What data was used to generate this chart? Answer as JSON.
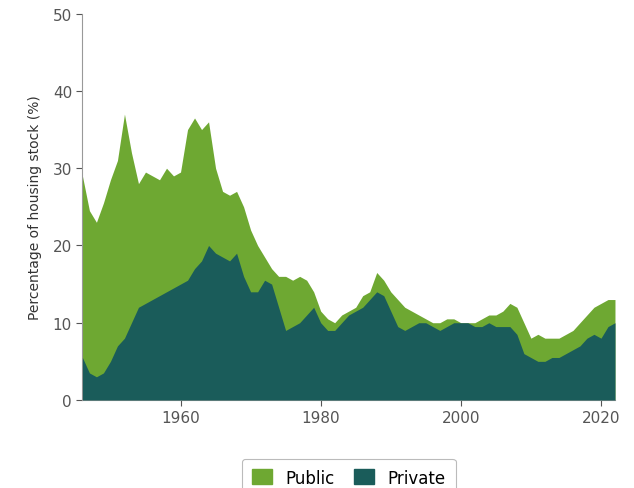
{
  "years": [
    1946,
    1947,
    1948,
    1949,
    1950,
    1951,
    1952,
    1953,
    1954,
    1955,
    1956,
    1957,
    1958,
    1959,
    1960,
    1961,
    1962,
    1963,
    1964,
    1965,
    1966,
    1967,
    1968,
    1969,
    1970,
    1971,
    1972,
    1973,
    1974,
    1975,
    1976,
    1977,
    1978,
    1979,
    1980,
    1981,
    1982,
    1983,
    1984,
    1985,
    1986,
    1987,
    1988,
    1989,
    1990,
    1991,
    1992,
    1993,
    1994,
    1995,
    1996,
    1997,
    1998,
    1999,
    2000,
    2001,
    2002,
    2003,
    2004,
    2005,
    2006,
    2007,
    2008,
    2009,
    2010,
    2011,
    2012,
    2013,
    2014,
    2015,
    2016,
    2017,
    2018,
    2019,
    2020,
    2021,
    2022
  ],
  "public": [
    29.0,
    24.5,
    23.0,
    25.5,
    28.5,
    31.0,
    37.0,
    32.0,
    28.0,
    29.5,
    29.0,
    28.5,
    30.0,
    29.0,
    29.5,
    35.0,
    36.5,
    35.0,
    36.0,
    30.0,
    27.0,
    26.5,
    27.0,
    25.0,
    22.0,
    20.0,
    18.5,
    17.0,
    16.0,
    16.0,
    15.5,
    16.0,
    15.5,
    14.0,
    11.5,
    10.5,
    10.0,
    11.0,
    11.5,
    12.0,
    13.5,
    14.0,
    16.5,
    15.5,
    14.0,
    13.0,
    12.0,
    11.5,
    11.0,
    10.5,
    10.0,
    10.0,
    10.5,
    10.5,
    10.0,
    10.0,
    10.0,
    10.5,
    11.0,
    11.0,
    11.5,
    12.5,
    12.0,
    10.0,
    8.0,
    8.5,
    8.0,
    8.0,
    8.0,
    8.5,
    9.0,
    10.0,
    11.0,
    12.0,
    12.5,
    13.0,
    13.0
  ],
  "private": [
    5.5,
    3.5,
    3.0,
    3.5,
    5.0,
    7.0,
    8.0,
    10.0,
    12.0,
    12.5,
    13.0,
    13.5,
    14.0,
    14.5,
    15.0,
    15.5,
    17.0,
    18.0,
    20.0,
    19.0,
    18.5,
    18.0,
    19.0,
    16.0,
    14.0,
    14.0,
    15.5,
    15.0,
    12.0,
    9.0,
    9.5,
    10.0,
    11.0,
    12.0,
    10.0,
    9.0,
    9.0,
    10.0,
    11.0,
    11.5,
    12.0,
    13.0,
    14.0,
    13.5,
    11.5,
    9.5,
    9.0,
    9.5,
    10.0,
    10.0,
    9.5,
    9.0,
    9.5,
    10.0,
    10.0,
    10.0,
    9.5,
    9.5,
    10.0,
    9.5,
    9.5,
    9.5,
    8.5,
    6.0,
    5.5,
    5.0,
    5.0,
    5.5,
    5.5,
    6.0,
    6.5,
    7.0,
    8.0,
    8.5,
    8.0,
    9.5,
    10.0
  ],
  "public_color": "#6ea832",
  "private_color": "#1a5c5a",
  "ylabel": "Percentage of housing stock (%)",
  "ylim": [
    0,
    50
  ],
  "yticks": [
    0,
    10,
    20,
    30,
    40,
    50
  ],
  "xlim_start": 1946,
  "xlim_end": 2022,
  "xticks": [
    1960,
    1980,
    2000,
    2020
  ],
  "legend_labels": [
    "Public",
    "Private"
  ],
  "background_color": "#ffffff",
  "axis_color": "#999999",
  "tick_color": "#555555",
  "label_fontsize": 10,
  "tick_fontsize": 11
}
